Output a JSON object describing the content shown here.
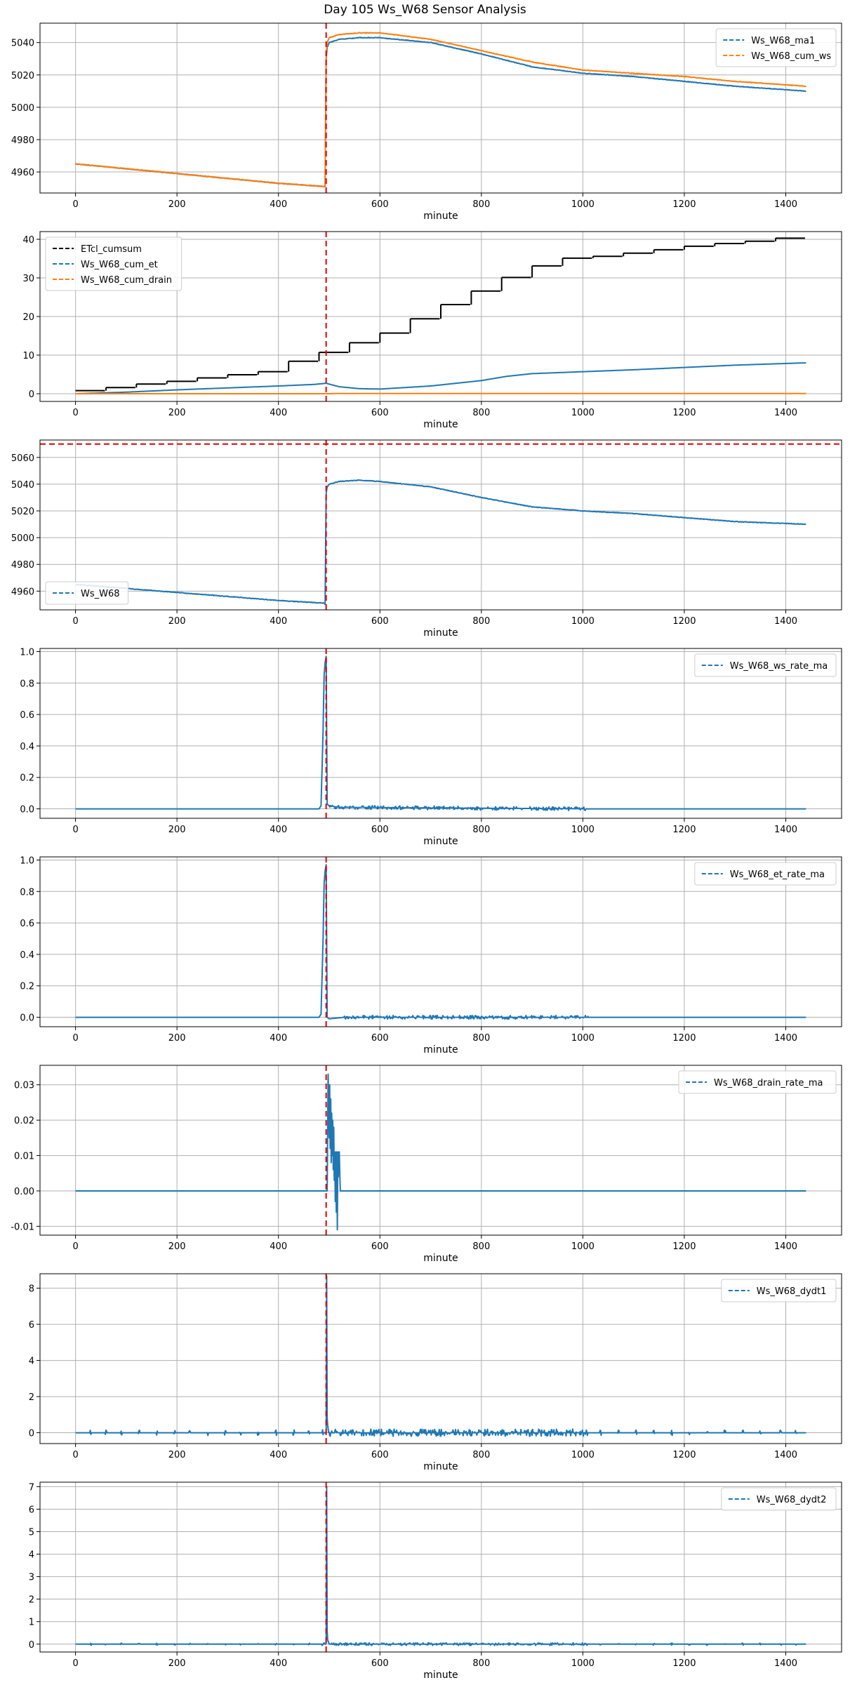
{
  "figure": {
    "title": "Day 105 Ws_W68 Sensor Analysis"
  },
  "colors": {
    "blue": "#1f77b4",
    "orange": "#ff7f0e",
    "black": "#000000",
    "red_marker": "#e00000",
    "grid": "#b0b0b0"
  },
  "chart_data": [
    {
      "type": "line",
      "xlabel": "minute",
      "xlim": [
        -70,
        1510
      ],
      "ylim": [
        4947,
        5052
      ],
      "xticks": [
        0,
        200,
        400,
        600,
        800,
        1000,
        1200,
        1400
      ],
      "yticks": [
        4960,
        4980,
        5000,
        5020,
        5040
      ],
      "ytick_labels": [
        "4960",
        "4980",
        "5000",
        "5020",
        "5040"
      ],
      "grid": true,
      "legend_position": "top-right",
      "vline": 494,
      "series": [
        {
          "name": "Ws_W68_ma1",
          "color": "blue",
          "style": "step",
          "x": [
            0,
            100,
            200,
            300,
            400,
            490,
            492,
            494,
            496,
            500,
            520,
            560,
            600,
            700,
            800,
            900,
            1000,
            1100,
            1200,
            1300,
            1440
          ],
          "y": [
            4965,
            4962,
            4959,
            4956,
            4953,
            4951,
            4951,
            5030,
            5037,
            5040,
            5042,
            5043,
            5043,
            5040,
            5033,
            5025,
            5021,
            5019,
            5016,
            5013,
            5010
          ]
        },
        {
          "name": "Ws_W68_cum_ws",
          "color": "orange",
          "style": "step",
          "x": [
            0,
            100,
            200,
            300,
            400,
            490,
            492,
            494,
            496,
            500,
            520,
            560,
            600,
            700,
            800,
            900,
            1000,
            1100,
            1200,
            1300,
            1440
          ],
          "y": [
            4965,
            4962,
            4959,
            4956,
            4953,
            4951,
            4951,
            5033,
            5040,
            5043,
            5045,
            5046,
            5046,
            5042,
            5035,
            5028,
            5023,
            5021,
            5019,
            5016,
            5013
          ]
        }
      ]
    },
    {
      "type": "line",
      "xlabel": "minute",
      "xlim": [
        -70,
        1510
      ],
      "ylim": [
        -2,
        42
      ],
      "xticks": [
        0,
        200,
        400,
        600,
        800,
        1000,
        1200,
        1400
      ],
      "yticks": [
        0,
        10,
        20,
        30,
        40
      ],
      "ytick_labels": [
        "0",
        "10",
        "20",
        "30",
        "40"
      ],
      "grid": true,
      "legend_position": "top-left",
      "vline": 494,
      "series": [
        {
          "name": "ETcl_cumsum",
          "color": "black",
          "style": "hstep",
          "x": [
            0,
            60,
            120,
            180,
            240,
            300,
            360,
            420,
            480,
            540,
            600,
            660,
            720,
            780,
            840,
            900,
            960,
            1020,
            1080,
            1140,
            1200,
            1260,
            1320,
            1380,
            1440
          ],
          "y": [
            0.8,
            1.6,
            2.5,
            3.2,
            4.1,
            4.9,
            5.7,
            8.4,
            10.7,
            13.2,
            15.7,
            19.4,
            23.1,
            26.6,
            30.1,
            33.1,
            35.1,
            35.6,
            36.4,
            37.3,
            38.2,
            38.9,
            39.5,
            40.3,
            40.3
          ]
        },
        {
          "name": "Ws_W68_cum_et",
          "color": "blue",
          "style": "line",
          "x": [
            0,
            100,
            200,
            300,
            400,
            470,
            494,
            520,
            560,
            600,
            700,
            800,
            850,
            900,
            1000,
            1100,
            1200,
            1300,
            1440
          ],
          "y": [
            0.0,
            0.4,
            1.0,
            1.5,
            2.0,
            2.4,
            2.7,
            1.8,
            1.3,
            1.2,
            2.0,
            3.4,
            4.5,
            5.2,
            5.7,
            6.2,
            6.8,
            7.4,
            8.0
          ]
        },
        {
          "name": "Ws_W68_cum_drain",
          "color": "orange",
          "style": "line",
          "x": [
            0,
            500,
            520,
            1440
          ],
          "y": [
            0.0,
            0.0,
            0.05,
            0.05
          ]
        }
      ]
    },
    {
      "type": "line",
      "xlabel": "minute",
      "xlim": [
        -70,
        1510
      ],
      "ylim": [
        4946,
        5073
      ],
      "xticks": [
        0,
        200,
        400,
        600,
        800,
        1000,
        1200,
        1400
      ],
      "yticks": [
        4960,
        4980,
        5000,
        5020,
        5040,
        5060
      ],
      "ytick_labels": [
        "4960",
        "4980",
        "5000",
        "5020",
        "5040",
        "5060"
      ],
      "grid": true,
      "legend_position": "bottom-left",
      "vline": 494,
      "hline": 5070,
      "series": [
        {
          "name": "Ws_W68",
          "color": "blue",
          "style": "step",
          "x": [
            0,
            100,
            200,
            300,
            400,
            490,
            492,
            494,
            496,
            500,
            520,
            560,
            600,
            700,
            800,
            900,
            1000,
            1100,
            1200,
            1300,
            1440
          ],
          "y": [
            4965,
            4962,
            4959,
            4956,
            4953,
            4951,
            4950,
            5033,
            5038,
            5040,
            5042,
            5043,
            5042,
            5038,
            5030,
            5023,
            5020,
            5018,
            5015,
            5012,
            5010
          ]
        }
      ]
    },
    {
      "type": "line",
      "xlabel": "minute",
      "xlim": [
        -70,
        1510
      ],
      "ylim": [
        -0.06,
        1.02
      ],
      "xticks": [
        0,
        200,
        400,
        600,
        800,
        1000,
        1200,
        1400
      ],
      "yticks": [
        0.0,
        0.2,
        0.4,
        0.6,
        0.8,
        1.0
      ],
      "ytick_labels": [
        "0.0",
        "0.2",
        "0.4",
        "0.6",
        "0.8",
        "1.0"
      ],
      "grid": true,
      "legend_position": "top-right",
      "vline": 494,
      "series": [
        {
          "name": "Ws_W68_ws_rate_ma",
          "color": "blue",
          "style": "noise",
          "x": [
            0,
            480,
            484,
            488,
            490,
            492,
            494,
            495,
            496,
            500,
            520,
            1010,
            1440
          ],
          "y": [
            0,
            0,
            0.02,
            0.5,
            0.85,
            0.93,
            0.97,
            0.5,
            0.03,
            0.02,
            0.01,
            0,
            0
          ],
          "noise_ranges": [
            [
              500,
              1010,
              0.012
            ]
          ]
        }
      ]
    },
    {
      "type": "line",
      "xlabel": "minute",
      "xlim": [
        -70,
        1510
      ],
      "ylim": [
        -0.06,
        1.02
      ],
      "xticks": [
        0,
        200,
        400,
        600,
        800,
        1000,
        1200,
        1400
      ],
      "yticks": [
        0.0,
        0.2,
        0.4,
        0.6,
        0.8,
        1.0
      ],
      "ytick_labels": [
        "0.0",
        "0.2",
        "0.4",
        "0.6",
        "0.8",
        "1.0"
      ],
      "grid": true,
      "legend_position": "top-right",
      "vline": 494,
      "series": [
        {
          "name": "Ws_W68_et_rate_ma",
          "color": "blue",
          "style": "noise",
          "x": [
            0,
            480,
            484,
            488,
            490,
            492,
            494,
            495,
            496,
            500,
            530,
            1010,
            1440
          ],
          "y": [
            0,
            0,
            0.02,
            0.5,
            0.85,
            0.93,
            0.97,
            0.5,
            0.0,
            -0.01,
            0.0,
            0,
            0
          ],
          "noise_ranges": [
            [
              530,
              1010,
              0.012
            ]
          ]
        }
      ]
    },
    {
      "type": "line",
      "xlabel": "minute",
      "xlim": [
        -70,
        1510
      ],
      "ylim": [
        -0.0125,
        0.0355
      ],
      "xticks": [
        0,
        200,
        400,
        600,
        800,
        1000,
        1200,
        1400
      ],
      "yticks": [
        -0.01,
        0.0,
        0.01,
        0.02,
        0.03
      ],
      "ytick_labels": [
        "-0.01",
        "0.00",
        "0.01",
        "0.02",
        "0.03"
      ],
      "grid": true,
      "legend_position": "top-right",
      "vline": 494,
      "series": [
        {
          "name": "Ws_W68_drain_rate_ma",
          "color": "blue",
          "style": "line",
          "x": [
            0,
            496,
            498,
            500,
            501,
            502,
            503,
            504,
            505,
            506,
            507,
            508,
            509,
            510,
            511,
            512,
            513,
            514,
            515,
            516,
            517,
            518,
            519,
            520,
            521,
            522,
            1440
          ],
          "y": [
            0,
            0,
            0.033,
            0.015,
            0.03,
            0.012,
            0.026,
            0.008,
            0.022,
            0.01,
            0.02,
            0.006,
            0.018,
            0.003,
            0.011,
            -0.003,
            0.011,
            -0.006,
            0.011,
            -0.011,
            0.011,
            0.004,
            0.011,
            0.011,
            0.004,
            0,
            0
          ]
        }
      ]
    },
    {
      "type": "line",
      "xlabel": "minute",
      "xlim": [
        -70,
        1510
      ],
      "ylim": [
        -0.6,
        8.8
      ],
      "xticks": [
        0,
        200,
        400,
        600,
        800,
        1000,
        1200,
        1400
      ],
      "yticks": [
        0,
        2,
        4,
        6,
        8
      ],
      "ytick_labels": [
        "0",
        "2",
        "4",
        "6",
        "8"
      ],
      "grid": true,
      "legend_position": "top-right",
      "vline": 494,
      "series": [
        {
          "name": "Ws_W68_dydt1",
          "color": "blue",
          "style": "noise",
          "x": [
            0,
            494,
            495,
            496,
            497,
            500,
            1440
          ],
          "y": [
            0,
            0,
            8.5,
            0.8,
            0.3,
            0,
            0
          ],
          "noise_ranges": [
            [
              485,
              1010,
              0.2
            ]
          ],
          "spike_x": [
            30,
            60,
            90,
            125,
            160,
            195,
            225,
            260,
            295,
            325,
            360,
            395,
            430,
            460,
            1035,
            1070,
            1105,
            1140,
            1175,
            1210,
            1245,
            1280,
            1315,
            1350,
            1390,
            1420
          ],
          "spike_amp": 0.15
        }
      ]
    },
    {
      "type": "line",
      "xlabel": "minute",
      "xlim": [
        -70,
        1510
      ],
      "ylim": [
        -0.35,
        7.2
      ],
      "xticks": [
        0,
        200,
        400,
        600,
        800,
        1000,
        1200,
        1400
      ],
      "yticks": [
        0,
        1,
        2,
        3,
        4,
        5,
        6,
        7
      ],
      "ytick_labels": [
        "0",
        "1",
        "2",
        "3",
        "4",
        "5",
        "6",
        "7"
      ],
      "grid": true,
      "legend_position": "top-right",
      "vline": 494,
      "series": [
        {
          "name": "Ws_W68_dydt2",
          "color": "blue",
          "style": "noise",
          "x": [
            0,
            494,
            495,
            496,
            497,
            500,
            1440
          ],
          "y": [
            0,
            0,
            7.0,
            0.6,
            0.2,
            0,
            0
          ],
          "noise_ranges": [
            [
              485,
              1010,
              0.06
            ]
          ],
          "spike_x": [
            30,
            60,
            90,
            125,
            160,
            195,
            225,
            260,
            295,
            325,
            360,
            395,
            430,
            460,
            1035,
            1070,
            1105,
            1140,
            1175,
            1210,
            1245,
            1280,
            1315,
            1350,
            1390,
            1420
          ],
          "spike_amp": 0.05
        }
      ]
    }
  ]
}
